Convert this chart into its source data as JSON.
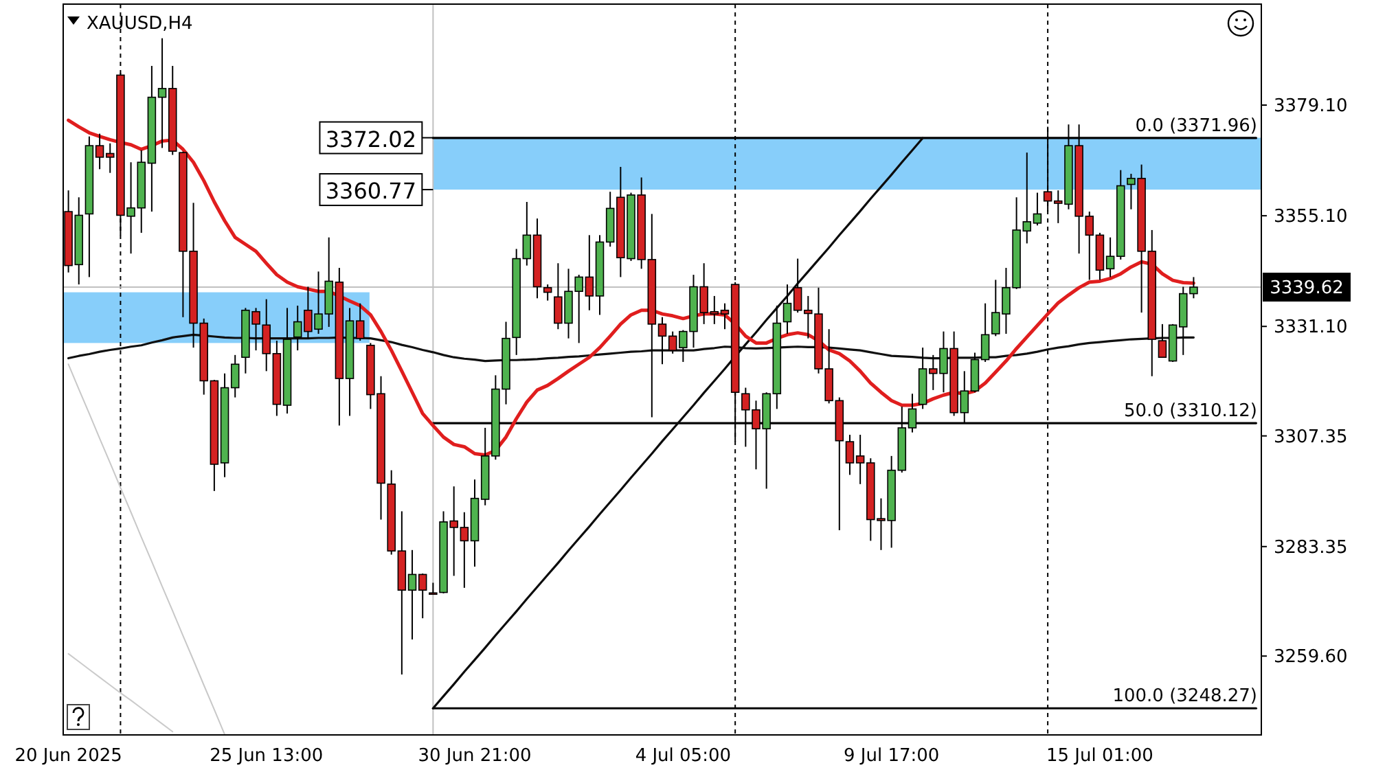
{
  "chart_data": {
    "type": "candlestick",
    "title": "XAUUSD,H4",
    "categories": [
      "20 Jun 2025",
      null,
      null,
      null,
      null,
      null,
      null,
      null,
      null,
      null,
      null,
      null,
      null,
      null,
      null,
      null,
      null,
      null,
      null,
      "25 Jun 13:00",
      null,
      null,
      null,
      null,
      null,
      null,
      null,
      null,
      null,
      null,
      null,
      null,
      null,
      null,
      null,
      null,
      null,
      null,
      null,
      "30 Jun 21:00",
      null,
      null,
      null,
      null,
      null,
      null,
      null,
      null,
      null,
      null,
      null,
      null,
      null,
      null,
      null,
      null,
      null,
      null,
      null,
      "4 Jul 05:00",
      null,
      null,
      null,
      null,
      null,
      null,
      null,
      null,
      null,
      null,
      null,
      null,
      null,
      null,
      null,
      null,
      null,
      null,
      null,
      "9 Jul 17:00",
      null,
      null,
      null,
      null,
      null,
      null,
      null,
      null,
      null,
      null,
      null,
      null,
      null,
      null,
      null,
      null,
      null,
      null,
      null,
      "15 Jul 01:00",
      null,
      null,
      null,
      null,
      null,
      null,
      null,
      null,
      null,
      null,
      null,
      null,
      null,
      null,
      null
    ],
    "ohlc": [
      [
        3356.0,
        3360.6,
        3342.8,
        3344.3
      ],
      [
        3344.5,
        3359.1,
        3340.2,
        3355.2
      ],
      [
        3355.5,
        3372.3,
        3341.8,
        3370.3
      ],
      [
        3370.3,
        3372.9,
        3365.2,
        3367.8
      ],
      [
        3368.6,
        3370.8,
        3364.4,
        3367.8
      ],
      [
        3385.6,
        3386.0,
        3350.9,
        3355.2
      ],
      [
        3355.0,
        3366.7,
        3346.9,
        3356.8
      ],
      [
        3356.8,
        3369.3,
        3351.4,
        3366.7
      ],
      [
        3366.5,
        3387.6,
        3356.0,
        3380.8
      ],
      [
        3380.8,
        3393.6,
        3369.8,
        3382.7
      ],
      [
        3382.7,
        3387.6,
        3368.3,
        3369.1
      ],
      [
        3368.8,
        3369.0,
        3333.1,
        3347.4
      ],
      [
        3347.4,
        3357.9,
        3326.5,
        3331.8
      ],
      [
        3331.8,
        3332.8,
        3316.3,
        3319.3
      ],
      [
        3319.3,
        3319.5,
        3295.4,
        3301.2
      ],
      [
        3301.5,
        3320.9,
        3298.4,
        3317.8
      ],
      [
        3317.8,
        3324.9,
        3315.7,
        3322.9
      ],
      [
        3324.4,
        3335.1,
        3320.9,
        3334.6
      ],
      [
        3334.3,
        3335.1,
        3325.9,
        3331.6
      ],
      [
        3331.4,
        3337.0,
        3321.4,
        3325.2
      ],
      [
        3325.2,
        3328.0,
        3311.7,
        3314.2
      ],
      [
        3314.0,
        3335.1,
        3312.2,
        3328.3
      ],
      [
        3328.8,
        3335.6,
        3325.9,
        3332.1
      ],
      [
        3334.6,
        3339.7,
        3328.5,
        3330.0
      ],
      [
        3330.5,
        3343.0,
        3329.5,
        3333.8
      ],
      [
        3333.8,
        3350.4,
        3331.0,
        3340.9
      ],
      [
        3340.7,
        3343.8,
        3309.6,
        3319.8
      ],
      [
        3319.8,
        3335.1,
        3311.7,
        3332.3
      ],
      [
        3332.3,
        3336.1,
        3328.0,
        3328.5
      ],
      [
        3327.0,
        3327.5,
        3313.2,
        3316.3
      ],
      [
        3316.5,
        3320.3,
        3289.2,
        3297.1
      ],
      [
        3296.9,
        3299.9,
        3281.6,
        3282.4
      ],
      [
        3282.4,
        3291.0,
        3255.6,
        3273.9
      ],
      [
        3273.9,
        3282.6,
        3263.2,
        3277.3
      ],
      [
        3277.3,
        3277.5,
        3267.8,
        3273.9
      ],
      [
        3273.3,
        3275.5,
        3272.9,
        3273.2
      ],
      [
        3273.4,
        3291.0,
        3273.2,
        3288.7
      ],
      [
        3288.9,
        3296.4,
        3277.0,
        3287.5
      ],
      [
        3287.5,
        3290.8,
        3274.4,
        3284.6
      ],
      [
        3284.6,
        3297.9,
        3279.0,
        3293.8
      ],
      [
        3293.6,
        3309.1,
        3292.3,
        3303.0
      ],
      [
        3303.0,
        3320.5,
        3302.2,
        3317.5
      ],
      [
        3317.5,
        3332.1,
        3314.2,
        3328.5
      ],
      [
        3328.7,
        3347.9,
        3324.9,
        3345.8
      ],
      [
        3345.8,
        3358.1,
        3344.3,
        3350.9
      ],
      [
        3350.9,
        3354.5,
        3337.2,
        3339.7
      ],
      [
        3339.5,
        3340.2,
        3336.7,
        3338.5
      ],
      [
        3337.5,
        3344.8,
        3330.5,
        3331.8
      ],
      [
        3331.8,
        3343.6,
        3328.5,
        3338.7
      ],
      [
        3338.7,
        3342.3,
        3327.5,
        3341.8
      ],
      [
        3341.8,
        3350.9,
        3334.6,
        3337.7
      ],
      [
        3337.7,
        3350.9,
        3333.6,
        3349.4
      ],
      [
        3349.4,
        3360.3,
        3348.4,
        3356.7
      ],
      [
        3359.1,
        3365.7,
        3341.8,
        3346.0
      ],
      [
        3345.8,
        3360.1,
        3345.3,
        3359.6
      ],
      [
        3359.6,
        3363.4,
        3343.6,
        3345.6
      ],
      [
        3345.6,
        3355.5,
        3311.4,
        3331.6
      ],
      [
        3331.6,
        3333.1,
        3322.9,
        3329.0
      ],
      [
        3329.0,
        3330.0,
        3325.2,
        3325.9
      ],
      [
        3326.5,
        3330.3,
        3323.4,
        3330.0
      ],
      [
        3330.0,
        3342.3,
        3326.5,
        3339.7
      ],
      [
        3339.7,
        3344.8,
        3331.6,
        3334.1
      ],
      [
        3334.3,
        3337.7,
        3331.6,
        3333.8
      ],
      [
        3334.6,
        3336.1,
        3330.5,
        3333.8
      ],
      [
        3340.2,
        3340.7,
        3306.1,
        3316.8
      ],
      [
        3316.5,
        3317.8,
        3305.0,
        3313.0
      ],
      [
        3313.0,
        3315.0,
        3300.1,
        3308.9
      ],
      [
        3308.9,
        3316.8,
        3295.9,
        3316.5
      ],
      [
        3316.5,
        3335.6,
        3313.2,
        3331.8
      ],
      [
        3332.1,
        3340.2,
        3329.5,
        3336.1
      ],
      [
        3339.5,
        3345.8,
        3334.1,
        3334.6
      ],
      [
        3334.6,
        3337.7,
        3328.5,
        3333.9
      ],
      [
        3333.8,
        3339.5,
        3320.9,
        3321.9
      ],
      [
        3321.9,
        3330.5,
        3314.4,
        3315.0
      ],
      [
        3315.0,
        3315.7,
        3286.9,
        3306.3
      ],
      [
        3306.1,
        3307.6,
        3298.9,
        3301.5
      ],
      [
        3303.0,
        3307.6,
        3296.9,
        3301.5
      ],
      [
        3301.5,
        3302.5,
        3284.6,
        3289.2
      ],
      [
        3289.4,
        3293.8,
        3282.6,
        3289.0
      ],
      [
        3289.0,
        3303.0,
        3283.1,
        3299.9
      ],
      [
        3299.9,
        3313.7,
        3299.4,
        3309.1
      ],
      [
        3309.1,
        3316.5,
        3308.1,
        3313.2
      ],
      [
        3314.2,
        3326.5,
        3313.2,
        3321.9
      ],
      [
        3321.9,
        3324.9,
        3317.3,
        3320.9
      ],
      [
        3320.9,
        3330.0,
        3316.8,
        3326.3
      ],
      [
        3326.3,
        3330.0,
        3311.7,
        3312.4
      ],
      [
        3312.4,
        3321.4,
        3310.1,
        3317.1
      ],
      [
        3317.1,
        3325.4,
        3316.8,
        3323.9
      ],
      [
        3323.9,
        3336.1,
        3323.4,
        3329.3
      ],
      [
        3329.5,
        3341.2,
        3329.0,
        3334.1
      ],
      [
        3333.8,
        3343.8,
        3329.5,
        3339.5
      ],
      [
        3339.5,
        3359.1,
        3339.2,
        3352.0
      ],
      [
        3351.8,
        3368.8,
        3349.1,
        3353.8
      ],
      [
        3353.5,
        3360.1,
        3353.0,
        3355.5
      ],
      [
        3360.3,
        3374.4,
        3356.0,
        3358.3
      ],
      [
        3358.3,
        3360.6,
        3353.5,
        3357.8
      ],
      [
        3357.6,
        3374.9,
        3356.5,
        3370.3
      ],
      [
        3370.3,
        3374.9,
        3346.9,
        3355.0
      ],
      [
        3355.0,
        3356.0,
        3341.2,
        3350.9
      ],
      [
        3350.9,
        3351.4,
        3341.2,
        3343.3
      ],
      [
        3343.6,
        3350.4,
        3341.8,
        3346.3
      ],
      [
        3346.3,
        3365.0,
        3345.6,
        3361.6
      ],
      [
        3361.9,
        3364.2,
        3356.5,
        3363.2
      ],
      [
        3363.2,
        3366.2,
        3334.1,
        3347.4
      ],
      [
        3347.4,
        3352.0,
        3320.3,
        3328.3
      ],
      [
        3328.0,
        3331.6,
        3324.4,
        3324.4
      ],
      [
        3323.6,
        3331.6,
        3323.4,
        3331.4
      ],
      [
        3331.0,
        3339.7,
        3324.9,
        3338.2
      ],
      [
        3338.2,
        3341.8,
        3337.2,
        3339.62
      ],
      null,
      null,
      null,
      null,
      null,
      null
    ],
    "colors": [
      "#d42222",
      "#4fb34f",
      "#4fb34f",
      "#d42222",
      "#d42222",
      "#d42222",
      "#4fb34f",
      "#4fb34f",
      "#4fb34f",
      "#4fb34f",
      "#d42222",
      "#d42222",
      "#d42222",
      "#d42222",
      "#d42222",
      "#4fb34f",
      "#4fb34f",
      "#4fb34f",
      "#d42222",
      "#d42222",
      "#d42222",
      "#4fb34f",
      "#4fb34f",
      "#d42222",
      "#4fb34f",
      "#4fb34f",
      "#d42222",
      "#4fb34f",
      "#d42222",
      "#d42222",
      "#d42222",
      "#d42222",
      "#d42222",
      "#4fb34f",
      "#d42222",
      "#d42222",
      "#4fb34f",
      "#d42222",
      "#d42222",
      "#4fb34f",
      "#4fb34f",
      "#4fb34f",
      "#4fb34f",
      "#4fb34f",
      "#4fb34f",
      "#d42222",
      "#d42222",
      "#d42222",
      "#4fb34f",
      "#4fb34f",
      "#d42222",
      "#4fb34f",
      "#4fb34f",
      "#d42222",
      "#4fb34f",
      "#d42222",
      "#d42222",
      "#d42222",
      "#d42222",
      "#4fb34f",
      "#4fb34f",
      "#d42222",
      "#d42222",
      "#d42222",
      "#d42222",
      "#d42222",
      "#d42222",
      "#4fb34f",
      "#4fb34f",
      "#4fb34f",
      "#d42222",
      "#d42222",
      "#d42222",
      "#d42222",
      "#d42222",
      "#d42222",
      "#d42222",
      "#d42222",
      "#d42222",
      "#4fb34f",
      "#4fb34f",
      "#4fb34f",
      "#4fb34f",
      "#d42222",
      "#4fb34f",
      "#d42222",
      "#4fb34f",
      "#4fb34f",
      "#4fb34f",
      "#4fb34f",
      "#4fb34f",
      "#4fb34f",
      "#4fb34f",
      "#4fb34f",
      "#d42222",
      "#d42222",
      "#4fb34f",
      "#d42222",
      "#d42222",
      "#d42222",
      "#4fb34f",
      "#4fb34f",
      "#4fb34f",
      "#d42222",
      "#d42222",
      "#d42222",
      "#4fb34f",
      "#4fb34f",
      "#4fb34f",
      null,
      null,
      null,
      null,
      null,
      null
    ],
    "ylim": [
      3242.5,
      3401.0
    ],
    "yticks": [
      {
        "value": 3259.6,
        "label": "3259.60"
      },
      3283.35,
      3307.35,
      {
        "value": 3331.1,
        "label": "3331.10"
      },
      {
        "value": 3355.1,
        "label": "3355.10"
      },
      {
        "value": 3379.1,
        "label": "3379.10"
      }
    ],
    "bands": [
      {
        "axis": "y",
        "from": 3327.5,
        "to": 3338.5,
        "color": "#87cefa"
      },
      {
        "axis": "y",
        "from": 3360.77,
        "to": 3372.02,
        "color": "#87cefa"
      }
    ],
    "series": [
      {
        "type": "line",
        "values": [
          3322.9,
          3317.5,
          3312.2,
          3306.8,
          3301.5,
          3296.1,
          3290.8,
          3285.4,
          3280.1,
          3274.7,
          3269.4,
          3264.0,
          3258.7,
          3253.3,
          3248.0,
          3242.6,
          null,
          null,
          null,
          null,
          null,
          null,
          null,
          null,
          null,
          null,
          null,
          null,
          null,
          null,
          null,
          null,
          null,
          null,
          null,
          null,
          null,
          null,
          null,
          null,
          null,
          null,
          null,
          null,
          null,
          null,
          null,
          null,
          null,
          null,
          null,
          null,
          null,
          null,
          null,
          null,
          null,
          null,
          null,
          null,
          null,
          null,
          null,
          null,
          null,
          null,
          null,
          null,
          null,
          null,
          null,
          null,
          null,
          null,
          null,
          null,
          null,
          null,
          null,
          null,
          null,
          null,
          null,
          null,
          null,
          null,
          null,
          null,
          null,
          null,
          null,
          null,
          null,
          null,
          null,
          null,
          null,
          null,
          null,
          null,
          null,
          null,
          null,
          null,
          null,
          null,
          null,
          null,
          null,
          null,
          null,
          null,
          null,
          null,
          null
        ],
        "color": "#c8c8c8"
      },
      {
        "type": "line",
        "values": [
          3260.1,
          3258.4,
          3256.7,
          3255.0,
          3253.3,
          3251.6,
          3250.0,
          3248.3,
          3246.6,
          3244.9,
          3243.2,
          null,
          null,
          null,
          null,
          null,
          null,
          null,
          null,
          null,
          null,
          null,
          null,
          null,
          null,
          null,
          null,
          null,
          null,
          null,
          null,
          null,
          null,
          null,
          null,
          null,
          null,
          null,
          null,
          null,
          null,
          null,
          null,
          null,
          null,
          null,
          null,
          null,
          null,
          null,
          null,
          null,
          null,
          null,
          null,
          null,
          null,
          null,
          null,
          null,
          null,
          null,
          null,
          null,
          null,
          null,
          null,
          null,
          null,
          null,
          null,
          null,
          null,
          null,
          null,
          null,
          null,
          null,
          null,
          null,
          null,
          null,
          null,
          null,
          null,
          null,
          null,
          null,
          null,
          null,
          null,
          null,
          null,
          null,
          null,
          null,
          null,
          null,
          null,
          null,
          null,
          null,
          null,
          null,
          null,
          null,
          null,
          null,
          null,
          null,
          null,
          null,
          null,
          null,
          null
        ],
        "color": "#cbcbcb"
      },
      {
        "type": "line",
        "name": "0.0 (3371.96)",
        "values": [
          null,
          null,
          null,
          null,
          null,
          null,
          null,
          null,
          null,
          null,
          null,
          null,
          null,
          null,
          null,
          null,
          null,
          null,
          null,
          null,
          null,
          null,
          null,
          null,
          null,
          null,
          null,
          null,
          null,
          null,
          null,
          null,
          null,
          null,
          null,
          3371.96,
          3371.96,
          3371.96,
          3371.96,
          3371.96,
          3371.96,
          3371.96,
          3371.96,
          3371.96,
          3371.96,
          3371.96,
          3371.96,
          3371.96,
          3371.96,
          3371.96,
          3371.96,
          3371.96,
          3371.96,
          3371.96,
          3371.96,
          3371.96,
          3371.96,
          3371.96,
          3371.96,
          3371.96,
          3371.96,
          3371.96,
          3371.96,
          3371.96,
          3371.96,
          3371.96,
          3371.96,
          3371.96,
          3371.96,
          3371.96,
          3371.96,
          3371.96,
          3371.96,
          3371.96,
          3371.96,
          3371.96,
          3371.96,
          3371.96,
          3371.96,
          3371.96,
          3371.96,
          3371.96,
          3371.96,
          3371.96,
          3371.96,
          3371.96,
          3371.96,
          3371.96,
          3371.96,
          3371.96,
          3371.96,
          3371.96,
          3371.96,
          3371.96,
          3371.96,
          3371.96,
          3371.96,
          3371.96,
          3371.96,
          3371.96,
          3371.96,
          3371.96,
          3371.96,
          3371.96,
          3371.96,
          3371.96,
          3371.96,
          3371.96,
          3371.96,
          3371.96,
          3371.96,
          3371.96,
          3371.96,
          3371.96,
          3371.96
        ],
        "color": "#000000"
      },
      {
        "type": "line",
        "name": "50.0 (3310.12)",
        "values": [
          null,
          null,
          null,
          null,
          null,
          null,
          null,
          null,
          null,
          null,
          null,
          null,
          null,
          null,
          null,
          null,
          null,
          null,
          null,
          null,
          null,
          null,
          null,
          null,
          null,
          null,
          null,
          null,
          null,
          null,
          null,
          null,
          null,
          null,
          null,
          3310.12,
          3310.12,
          3310.12,
          3310.12,
          3310.12,
          3310.12,
          3310.12,
          3310.12,
          3310.12,
          3310.12,
          3310.12,
          3310.12,
          3310.12,
          3310.12,
          3310.12,
          3310.12,
          3310.12,
          3310.12,
          3310.12,
          3310.12,
          3310.12,
          3310.12,
          3310.12,
          3310.12,
          3310.12,
          3310.12,
          3310.12,
          3310.12,
          3310.12,
          3310.12,
          3310.12,
          3310.12,
          3310.12,
          3310.12,
          3310.12,
          3310.12,
          3310.12,
          3310.12,
          3310.12,
          3310.12,
          3310.12,
          3310.12,
          3310.12,
          3310.12,
          3310.12,
          3310.12,
          3310.12,
          3310.12,
          3310.12,
          3310.12,
          3310.12,
          3310.12,
          3310.12,
          3310.12,
          3310.12,
          3310.12,
          3310.12,
          3310.12,
          3310.12,
          3310.12,
          3310.12,
          3310.12,
          3310.12,
          3310.12,
          3310.12,
          3310.12,
          3310.12,
          3310.12,
          3310.12,
          3310.12,
          3310.12,
          3310.12,
          3310.12,
          3310.12,
          3310.12,
          3310.12,
          3310.12,
          3310.12,
          3310.12,
          3310.12
        ],
        "color": "#040404"
      },
      {
        "type": "line",
        "name": "100.0 (3248.27)",
        "values": [
          null,
          null,
          null,
          null,
          null,
          null,
          null,
          null,
          null,
          null,
          null,
          null,
          null,
          null,
          null,
          null,
          null,
          null,
          null,
          null,
          null,
          null,
          null,
          null,
          null,
          null,
          null,
          null,
          null,
          null,
          null,
          null,
          null,
          null,
          null,
          3248.27,
          3248.27,
          3248.27,
          3248.27,
          3248.27,
          3248.27,
          3248.27,
          3248.27,
          3248.27,
          3248.27,
          3248.27,
          3248.27,
          3248.27,
          3248.27,
          3248.27,
          3248.27,
          3248.27,
          3248.27,
          3248.27,
          3248.27,
          3248.27,
          3248.27,
          3248.27,
          3248.27,
          3248.27,
          3248.27,
          3248.27,
          3248.27,
          3248.27,
          3248.27,
          3248.27,
          3248.27,
          3248.27,
          3248.27,
          3248.27,
          3248.27,
          3248.27,
          3248.27,
          3248.27,
          3248.27,
          3248.27,
          3248.27,
          3248.27,
          3248.27,
          3248.27,
          3248.27,
          3248.27,
          3248.27,
          3248.27,
          3248.27,
          3248.27,
          3248.27,
          3248.27,
          3248.27,
          3248.27,
          3248.27,
          3248.27,
          3248.27,
          3248.27,
          3248.27,
          3248.27,
          3248.27,
          3248.27,
          3248.27,
          3248.27,
          3248.27,
          3248.27,
          3248.27,
          3248.27,
          3248.27,
          3248.27,
          3248.27,
          3248.27,
          3248.27,
          3248.27,
          3248.27,
          3248.27,
          3248.27,
          3248.27,
          3248.27
        ],
        "color": "#080808"
      },
      {
        "type": "line",
        "values": [
          null,
          null,
          null,
          null,
          null,
          null,
          null,
          null,
          null,
          null,
          null,
          null,
          null,
          null,
          null,
          null,
          null,
          null,
          null,
          null,
          null,
          null,
          null,
          null,
          null,
          null,
          null,
          null,
          null,
          null,
          null,
          null,
          null,
          null,
          null,
          3248.27,
          3250.9,
          3253.5,
          3256.2,
          3258.8,
          3261.4,
          3264.1,
          3266.7,
          3269.3,
          3272.0,
          3274.6,
          3277.2,
          3279.8,
          3282.5,
          3285.1,
          3287.7,
          3290.4,
          3293.0,
          3295.6,
          3298.3,
          3300.9,
          3303.5,
          3306.2,
          3308.8,
          3311.4,
          3314.0,
          3316.7,
          3319.3,
          3321.9,
          3324.6,
          3327.2,
          3329.8,
          3332.5,
          3335.1,
          3337.7,
          3340.4,
          3343.0,
          3345.6,
          3348.2,
          3350.9,
          3353.5,
          3356.1,
          3358.8,
          3361.4,
          3364.0,
          3366.7,
          3369.3,
          3371.96,
          null,
          null,
          null,
          null,
          null,
          null,
          null,
          null,
          null,
          null,
          null,
          null,
          null,
          null,
          null,
          null,
          null,
          null,
          null,
          null,
          null,
          null,
          null,
          null,
          null,
          null,
          null,
          null,
          null,
          null,
          null,
          null
        ],
        "color": "#0c0c0c"
      },
      {
        "type": "line",
        "values": [
          3324.2,
          3324.7,
          3325.1,
          3325.6,
          3326.0,
          3326.3,
          3326.7,
          3327.0,
          3327.6,
          3328.1,
          3328.7,
          3329.0,
          3329.3,
          3329.1,
          3328.9,
          3328.7,
          3328.6,
          3328.6,
          3328.5,
          3328.5,
          3328.5,
          3328.5,
          3328.5,
          3328.5,
          3328.6,
          3328.6,
          3328.7,
          3328.6,
          3328.6,
          3328.5,
          3328.1,
          3327.7,
          3327.1,
          3326.6,
          3326.0,
          3325.5,
          3324.9,
          3324.4,
          3324.1,
          3323.9,
          3323.6,
          3323.7,
          3323.8,
          3323.8,
          3323.9,
          3324.0,
          3324.2,
          3324.3,
          3324.5,
          3324.6,
          3324.8,
          3325.0,
          3325.2,
          3325.4,
          3325.6,
          3325.7,
          3325.9,
          3325.9,
          3325.9,
          3325.9,
          3325.9,
          3326.2,
          3326.4,
          3326.7,
          3326.6,
          3326.4,
          3326.3,
          3326.4,
          3326.5,
          3326.6,
          3326.7,
          3326.6,
          3326.6,
          3326.5,
          3326.3,
          3326.1,
          3325.9,
          3325.5,
          3325.1,
          3324.7,
          3324.6,
          3324.5,
          3324.3,
          3324.2,
          3324.2,
          3324.3,
          3324.3,
          3324.3,
          3324.4,
          3324.4,
          3324.7,
          3324.9,
          3325.2,
          3325.6,
          3326.1,
          3326.5,
          3326.8,
          3327.2,
          3327.5,
          3327.7,
          3327.9,
          3328.1,
          3328.3,
          3328.4,
          3328.5,
          3328.6,
          3328.6,
          3328.7,
          3328.7,
          null,
          null,
          null,
          null,
          null,
          null
        ],
        "color": "#101010"
      },
      {
        "type": "line",
        "values": [
          3375.8,
          3374.4,
          3373.1,
          3372.3,
          3371.6,
          3371.0,
          3370.5,
          3369.5,
          3370.3,
          3371.3,
          3371.5,
          3369.5,
          3366.7,
          3362.7,
          3358.1,
          3354.0,
          3350.4,
          3348.9,
          3347.4,
          3344.8,
          3342.3,
          3340.7,
          3339.7,
          3339.2,
          3338.7,
          3338.7,
          3337.7,
          3336.6,
          3335.6,
          3333.6,
          3330.0,
          3325.9,
          3321.4,
          3316.8,
          3312.2,
          3309.6,
          3307.1,
          3305.5,
          3305.0,
          3303.5,
          3303.2,
          3304.2,
          3307.1,
          3311.1,
          3314.7,
          3317.3,
          3318.3,
          3319.8,
          3321.4,
          3322.9,
          3324.4,
          3326.5,
          3329.0,
          3331.6,
          3333.6,
          3334.6,
          3334.6,
          3333.8,
          3333.4,
          3332.8,
          3333.4,
          3333.8,
          3333.8,
          3333.6,
          3331.6,
          3329.0,
          3327.5,
          3327.5,
          3328.5,
          3329.3,
          3329.7,
          3329.3,
          3328.0,
          3326.0,
          3325.2,
          3323.6,
          3321.4,
          3318.8,
          3316.8,
          3315.0,
          3314.0,
          3314.0,
          3314.4,
          3315.4,
          3316.2,
          3316.8,
          3316.5,
          3317.1,
          3318.8,
          3321.2,
          3323.6,
          3326.3,
          3328.8,
          3331.3,
          3333.8,
          3336.2,
          3337.9,
          3339.5,
          3340.7,
          3340.9,
          3341.5,
          3342.5,
          3344.0,
          3345.1,
          3344.6,
          3342.5,
          3341.1,
          3340.6,
          3340.5,
          null,
          null,
          null,
          null,
          null,
          null
        ],
        "color": "#e01e1e"
      }
    ],
    "ref_lines": [
      {
        "axis": "y",
        "value": 3339.62,
        "label": "3339.62",
        "color": "#c0c0c0"
      }
    ],
    "annotations": [
      "3372.02",
      "3360.77"
    ]
  }
}
